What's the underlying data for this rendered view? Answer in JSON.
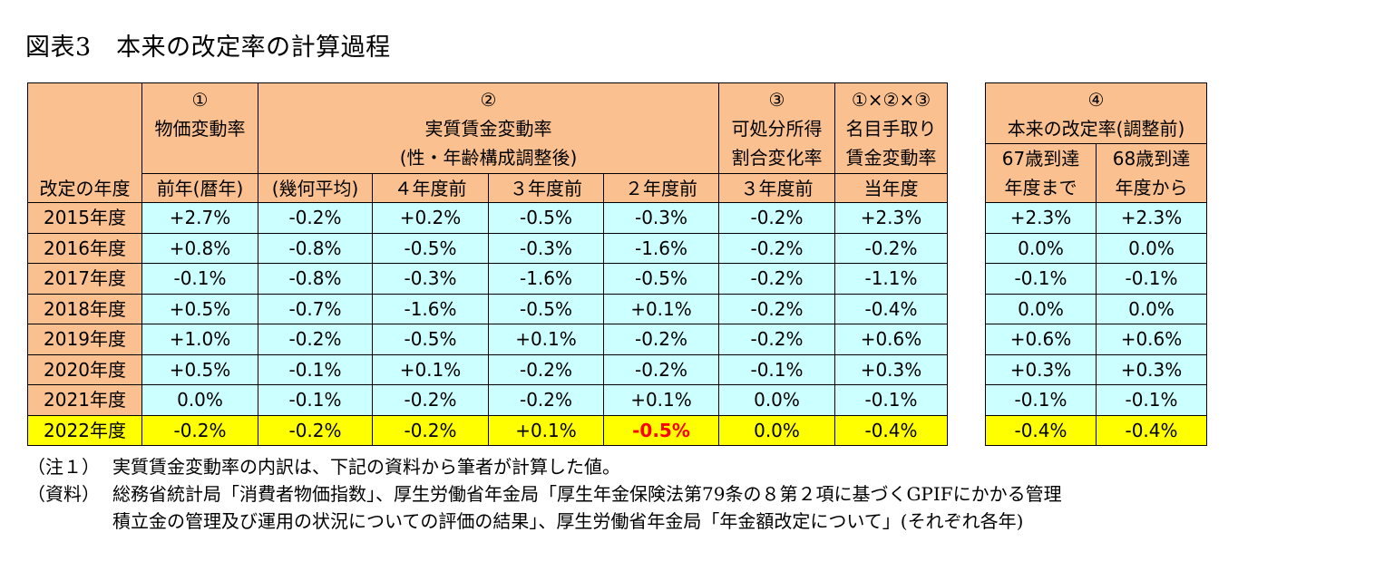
{
  "title": "図表3　本来の改定率の計算過程",
  "header": {
    "year": "改定の年度",
    "col1": {
      "num": "①",
      "name": "物価変動率",
      "sub": "前年(暦年)"
    },
    "col2": {
      "num": "②",
      "name": "実質賃金変動率",
      "name2": "(性・年齢構成調整後)",
      "geo": "(幾何平均)",
      "y4": "４年度前",
      "y3": "３年度前",
      "y2": "２年度前"
    },
    "col3": {
      "num": "③",
      "name": "可処分所得",
      "name2": "割合変化率",
      "sub": "３年度前"
    },
    "col4": {
      "num": "①×②×③",
      "name": "名目手取り",
      "name2": "賃金変動率",
      "sub": "当年度"
    },
    "col5": {
      "num": "④",
      "name": "本来の改定率(調整前)",
      "a1": "67歳到達",
      "a2": "年度まで",
      "b1": "68歳到達",
      "b2": "年度から"
    }
  },
  "rows": [
    {
      "year": "2015年度",
      "v": [
        "+2.7%",
        "-0.2%",
        "+0.2%",
        "-0.5%",
        "-0.3%",
        "-0.2%",
        "+2.3%"
      ],
      "r": [
        "+2.3%",
        "+2.3%"
      ]
    },
    {
      "year": "2016年度",
      "v": [
        "+0.8%",
        "-0.8%",
        "-0.5%",
        "-0.3%",
        "-1.6%",
        "-0.2%",
        "-0.2%"
      ],
      "r": [
        "0.0%",
        "0.0%"
      ]
    },
    {
      "year": "2017年度",
      "v": [
        "-0.1%",
        "-0.8%",
        "-0.3%",
        "-1.6%",
        "-0.5%",
        "-0.2%",
        "-1.1%"
      ],
      "r": [
        "-0.1%",
        "-0.1%"
      ]
    },
    {
      "year": "2018年度",
      "v": [
        "+0.5%",
        "-0.7%",
        "-1.6%",
        "-0.5%",
        "+0.1%",
        "-0.2%",
        "-0.4%"
      ],
      "r": [
        "0.0%",
        "0.0%"
      ]
    },
    {
      "year": "2019年度",
      "v": [
        "+1.0%",
        "-0.2%",
        "-0.5%",
        "+0.1%",
        "-0.2%",
        "-0.2%",
        "+0.6%"
      ],
      "r": [
        "+0.6%",
        "+0.6%"
      ]
    },
    {
      "year": "2020年度",
      "v": [
        "+0.5%",
        "-0.1%",
        "+0.1%",
        "-0.2%",
        "-0.2%",
        "-0.1%",
        "+0.3%"
      ],
      "r": [
        "+0.3%",
        "+0.3%"
      ]
    },
    {
      "year": "2021年度",
      "v": [
        "0.0%",
        "-0.1%",
        "-0.2%",
        "-0.2%",
        "+0.1%",
        "0.0%",
        "-0.1%"
      ],
      "r": [
        "-0.1%",
        "-0.1%"
      ]
    },
    {
      "year": "2022年度",
      "v": [
        "-0.2%",
        "-0.2%",
        "-0.2%",
        "+0.1%",
        "-0.5%",
        "0.0%",
        "-0.4%"
      ],
      "r": [
        "-0.4%",
        "-0.4%"
      ]
    }
  ],
  "notes": {
    "n1_label": "（注１）",
    "n1_text": "実質賃金変動率の内訳は、下記の資料から筆者が計算した値。",
    "src_label": "（資料）",
    "src_text1": "総務省統計局「消費者物価指数」、厚生労働省年金局「厚生年金保険法第79条の８第２項に基づくGPIFにかかる管理",
    "src_text2": "積立金の管理及び運用の状況についての評価の結果」、厚生労働省年金局「年金額改定について」(それぞれ各年)"
  }
}
